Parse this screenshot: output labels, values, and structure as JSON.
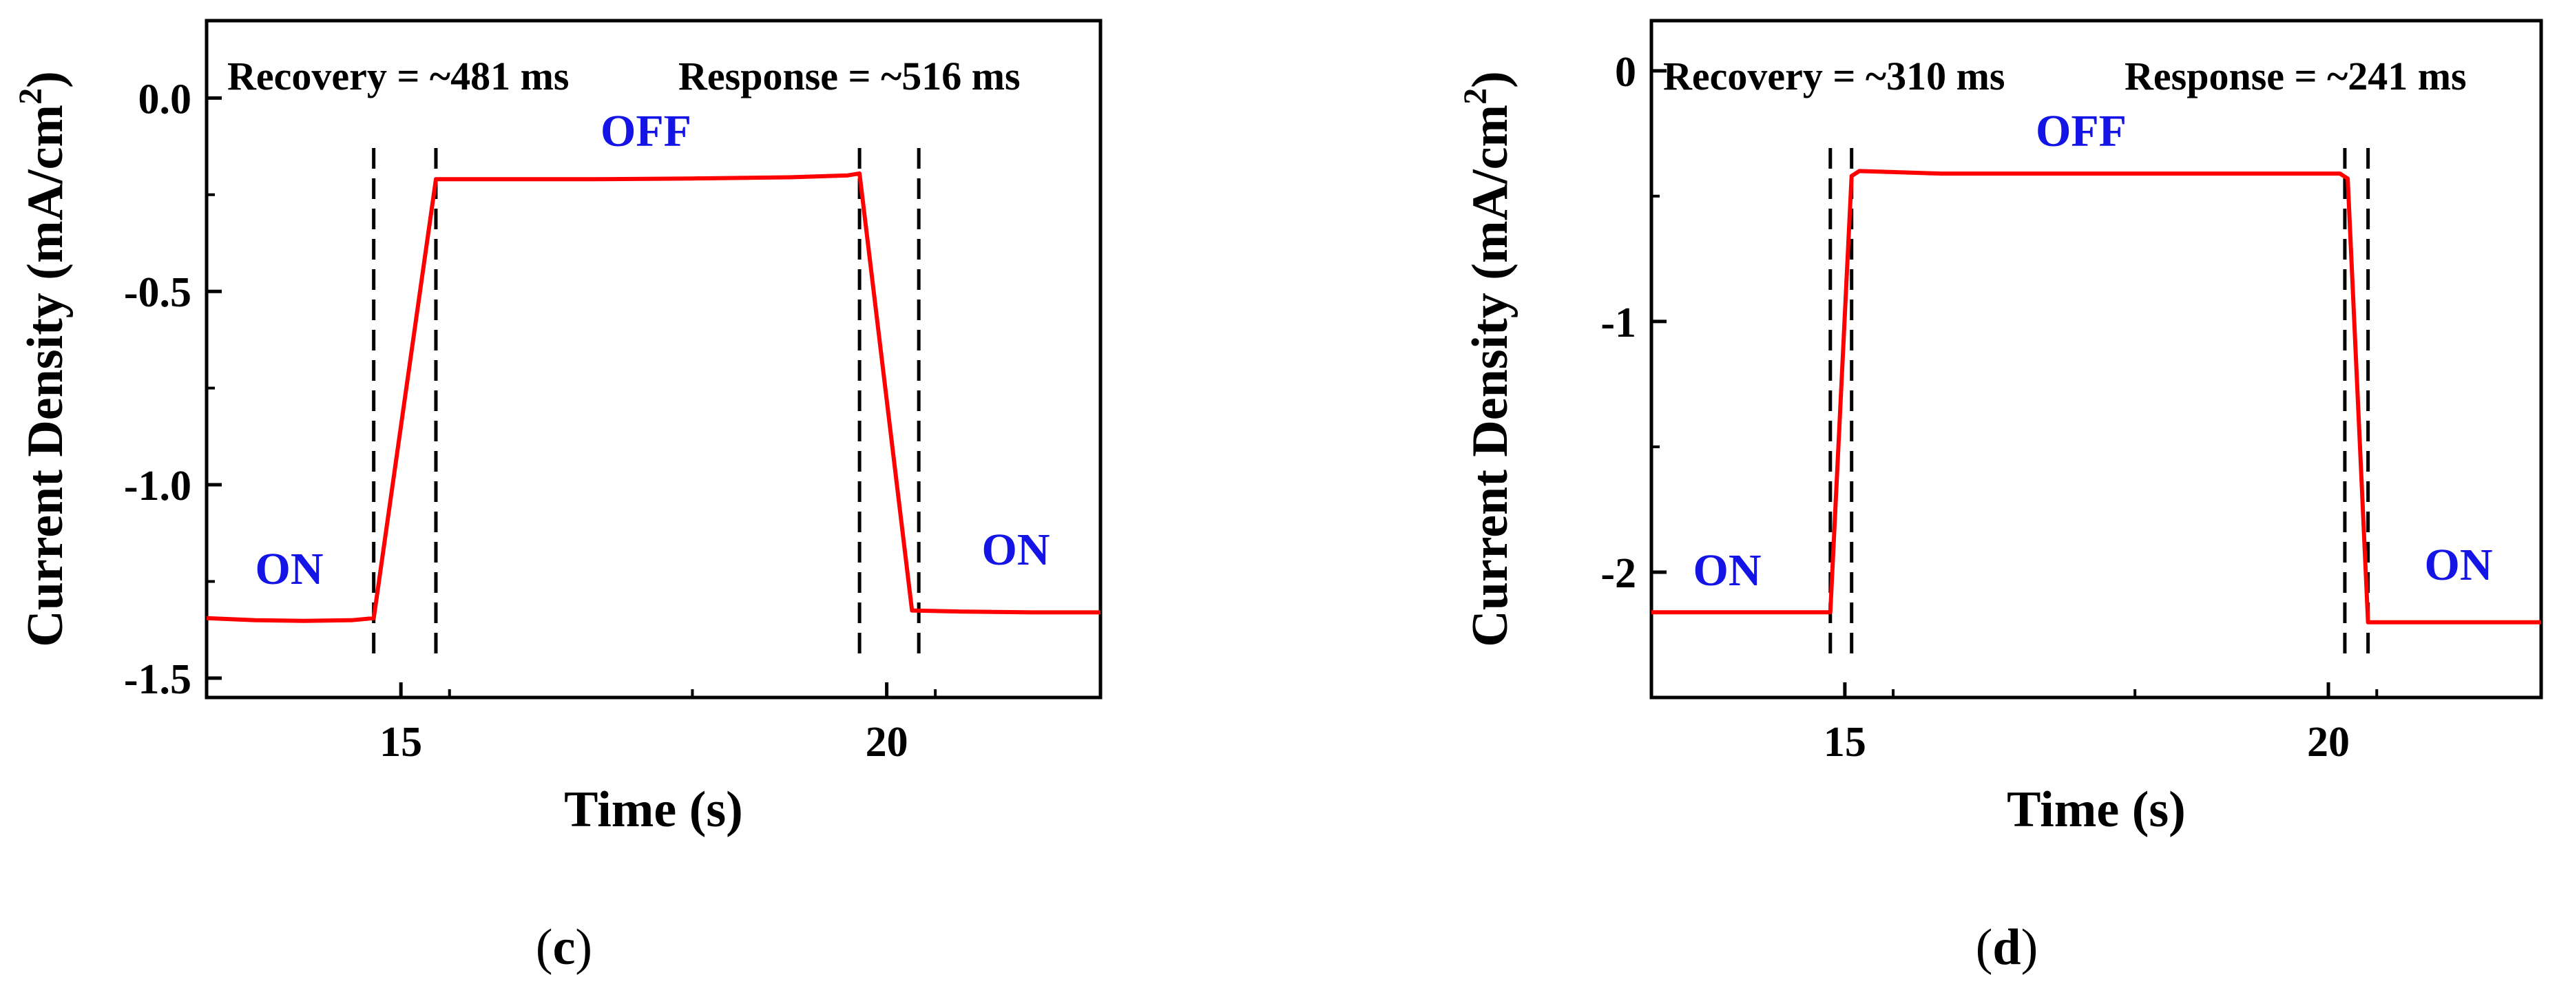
{
  "chart_data": [
    {
      "panel": "c",
      "type": "line",
      "xlabel": "Time (s)",
      "ylabel": "Current Density (mA/cm²)",
      "ylabel_main": "Current Density (mA/cm",
      "ylabel_sup": "2",
      "ylabel_end": ")",
      "xlim": [
        13,
        22.2
      ],
      "ylim": [
        -1.55,
        0.2
      ],
      "xticks": [
        15,
        20
      ],
      "xtick_labels": [
        "15",
        "20"
      ],
      "yticks": [
        0.0,
        -0.5,
        -1.0,
        -1.5
      ],
      "ytick_labels": [
        "0.0",
        "-0.5",
        "-1.0",
        "-1.5"
      ],
      "series": [
        {
          "color": "#ff0000",
          "x": [
            13.0,
            13.5,
            14.0,
            14.5,
            14.72,
            15.36,
            16.0,
            17.0,
            18.0,
            19.0,
            19.6,
            19.72,
            20.26,
            20.8,
            21.5,
            22.2
          ],
          "y": [
            -1.345,
            -1.35,
            -1.352,
            -1.35,
            -1.345,
            -0.21,
            -0.21,
            -0.21,
            -0.208,
            -0.205,
            -0.2,
            -0.195,
            -1.325,
            -1.328,
            -1.33,
            -1.33
          ]
        }
      ],
      "vlines": [
        14.72,
        15.36,
        19.72,
        20.33
      ],
      "annotations": {
        "recovery": "Recovery = ~481 ms",
        "response": "Response = ~516 ms",
        "off": "OFF",
        "on_left": "ON",
        "on_right": "ON"
      },
      "caption_open": "(",
      "caption_letter": "c",
      "caption_close": ")"
    },
    {
      "panel": "d",
      "type": "line",
      "xlabel": "Time (s)",
      "ylabel": "Current Density (mA/cm²)",
      "ylabel_main": "Current Density (mA/cm",
      "ylabel_sup": "2",
      "ylabel_end": ")",
      "xlim": [
        13,
        22.2
      ],
      "ylim": [
        -2.5,
        0.2
      ],
      "xticks": [
        15,
        20
      ],
      "xtick_labels": [
        "15",
        "20"
      ],
      "yticks": [
        0,
        -1,
        -2
      ],
      "ytick_labels": [
        "0",
        "-1",
        "-2"
      ],
      "series": [
        {
          "color": "#ff0000",
          "x": [
            13.0,
            14.0,
            14.85,
            15.07,
            15.15,
            16.0,
            17.5,
            19.0,
            20.12,
            20.2,
            20.41,
            21.0,
            22.2
          ],
          "y": [
            -2.16,
            -2.16,
            -2.16,
            -0.42,
            -0.4,
            -0.41,
            -0.41,
            -0.41,
            -0.41,
            -0.43,
            -2.2,
            -2.2,
            -2.2
          ]
        }
      ],
      "vlines": [
        14.85,
        15.07,
        20.17,
        20.41
      ],
      "annotations": {
        "recovery": "Recovery = ~310 ms",
        "response": "Response = ~241 ms",
        "off": "OFF",
        "on_left": "ON",
        "on_right": "ON"
      },
      "caption_open": "(",
      "caption_letter": "d",
      "caption_close": ")"
    }
  ]
}
